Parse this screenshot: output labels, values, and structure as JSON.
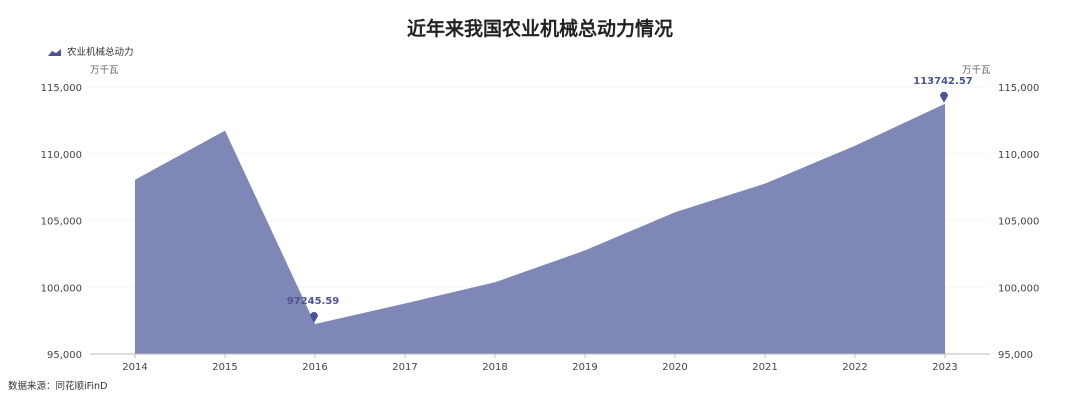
{
  "chart_data": {
    "type": "area",
    "title": "近年来我国农业机械总动力情况",
    "legend": {
      "label": "农业机械总动力",
      "position": "top-left"
    },
    "left_unit": "万千瓦",
    "right_unit": "万千瓦",
    "ylim": [
      95000,
      115000
    ],
    "y_ticks": [
      95000,
      100000,
      105000,
      110000,
      115000
    ],
    "y_tick_labels": [
      "95,000",
      "100,000",
      "105,000",
      "110,000",
      "115,000"
    ],
    "categories": [
      "2014",
      "2015",
      "2016",
      "2017",
      "2018",
      "2019",
      "2020",
      "2021",
      "2022",
      "2023"
    ],
    "series": [
      {
        "name": "农业机械总动力",
        "color": "#7F87B6",
        "values": [
          108057,
          111728,
          97245.59,
          98783,
          100372,
          102758,
          105622,
          107765,
          110597,
          113742.57
        ]
      }
    ],
    "annotations": [
      {
        "category": "2016",
        "value": 97245.59,
        "label": "97245.59"
      },
      {
        "category": "2023",
        "value": 113742.57,
        "label": "113742.57"
      }
    ],
    "grid": true
  },
  "footer": {
    "source": "数据来源：同花顺iFinD"
  },
  "colors": {
    "area": "#7F87B6",
    "marker": "#4B5494",
    "annotation_text": "#4B5494",
    "axis": "#BBBBBB",
    "grid": "#EEEEEE",
    "tick_text": "#444444",
    "title": "#222222"
  }
}
